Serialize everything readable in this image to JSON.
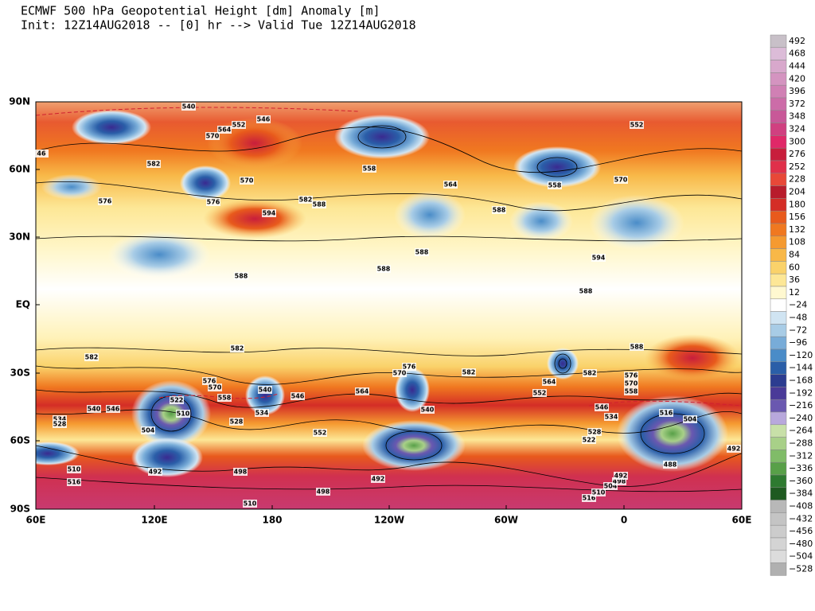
{
  "header": {
    "title": "ECMWF 500 hPa Geopotential Height [dm] Anomaly [m]",
    "subtitle": "Init: 12Z14AUG2018 -- [0] hr --> Valid Tue 12Z14AUG2018"
  },
  "axes": {
    "lat_labels": [
      "90N",
      "60N",
      "30N",
      "EQ",
      "30S",
      "60S",
      "90S"
    ],
    "lon_labels": [
      "60E",
      "120E",
      "180",
      "120W",
      "60W",
      "0",
      "60E"
    ]
  },
  "colorbar": {
    "levels": [
      {
        "label": "492",
        "color": "#c8c0c8"
      },
      {
        "label": "468",
        "color": "#dcbcd8"
      },
      {
        "label": "444",
        "color": "#d8a8cc"
      },
      {
        "label": "420",
        "color": "#d494c0"
      },
      {
        "label": "396",
        "color": "#d080b4"
      },
      {
        "label": "372",
        "color": "#cc6ca8"
      },
      {
        "label": "348",
        "color": "#c85898"
      },
      {
        "label": "324",
        "color": "#d04080"
      },
      {
        "label": "300",
        "color": "#e02868"
      },
      {
        "label": "276",
        "color": "#c81e3c"
      },
      {
        "label": "252",
        "color": "#e0304a"
      },
      {
        "label": "228",
        "color": "#e84838"
      },
      {
        "label": "204",
        "color": "#b81c2c"
      },
      {
        "label": "180",
        "color": "#d42d26"
      },
      {
        "label": "156",
        "color": "#e85a1c"
      },
      {
        "label": "132",
        "color": "#f07820"
      },
      {
        "label": "108",
        "color": "#f59a30"
      },
      {
        "label": "84",
        "color": "#f8b848"
      },
      {
        "label": "60",
        "color": "#fad26a"
      },
      {
        "label": "36",
        "color": "#fde796"
      },
      {
        "label": "12",
        "color": "#fff8d0"
      },
      {
        "label": "−24",
        "color": "#ffffff"
      },
      {
        "label": "−48",
        "color": "#d0e4f2"
      },
      {
        "label": "−72",
        "color": "#a8cce6"
      },
      {
        "label": "−96",
        "color": "#78acd8"
      },
      {
        "label": "−120",
        "color": "#4a8cc8"
      },
      {
        "label": "−144",
        "color": "#2a5ea8"
      },
      {
        "label": "−168",
        "color": "#2c3c90"
      },
      {
        "label": "−192",
        "color": "#4a3a98"
      },
      {
        "label": "−216",
        "color": "#6a58b0"
      },
      {
        "label": "−240",
        "color": "#b8a8dc"
      },
      {
        "label": "−264",
        "color": "#c8e0a8"
      },
      {
        "label": "−288",
        "color": "#a8d088"
      },
      {
        "label": "−312",
        "color": "#80bc68"
      },
      {
        "label": "−336",
        "color": "#58a048"
      },
      {
        "label": "−360",
        "color": "#2e7a30"
      },
      {
        "label": "−384",
        "color": "#1e5a20"
      },
      {
        "label": "−408",
        "color": "#b8b8b8"
      },
      {
        "label": "−432",
        "color": "#c4c4c4"
      },
      {
        "label": "−456",
        "color": "#cccccc"
      },
      {
        "label": "−480",
        "color": "#d4d4d4"
      },
      {
        "label": "−504",
        "color": "#dcdcdc"
      },
      {
        "label": "−528",
        "color": "#b0b0b0"
      }
    ]
  },
  "contour_labels": [
    "540",
    "546",
    "552",
    "564",
    "570",
    "582",
    "576",
    "576",
    "570",
    "594",
    "582",
    "588",
    "558",
    "564",
    "588",
    "558",
    "552",
    "570",
    "588",
    "588",
    "588",
    "594",
    "588",
    "588",
    "582",
    "582",
    "582",
    "582",
    "576",
    "570",
    "564",
    "546",
    "552",
    "540",
    "552",
    "564",
    "534",
    "528",
    "522",
    "510",
    "504",
    "492",
    "510",
    "516",
    "498",
    "492",
    "498",
    "510",
    "516",
    "510",
    "504",
    "498",
    "492",
    "488",
    "516",
    "504",
    "492",
    "522",
    "528",
    "534",
    "546",
    "558",
    "570",
    "576",
    "534",
    "528",
    "540",
    "546",
    "576",
    "570",
    "558",
    "540",
    "46"
  ]
}
